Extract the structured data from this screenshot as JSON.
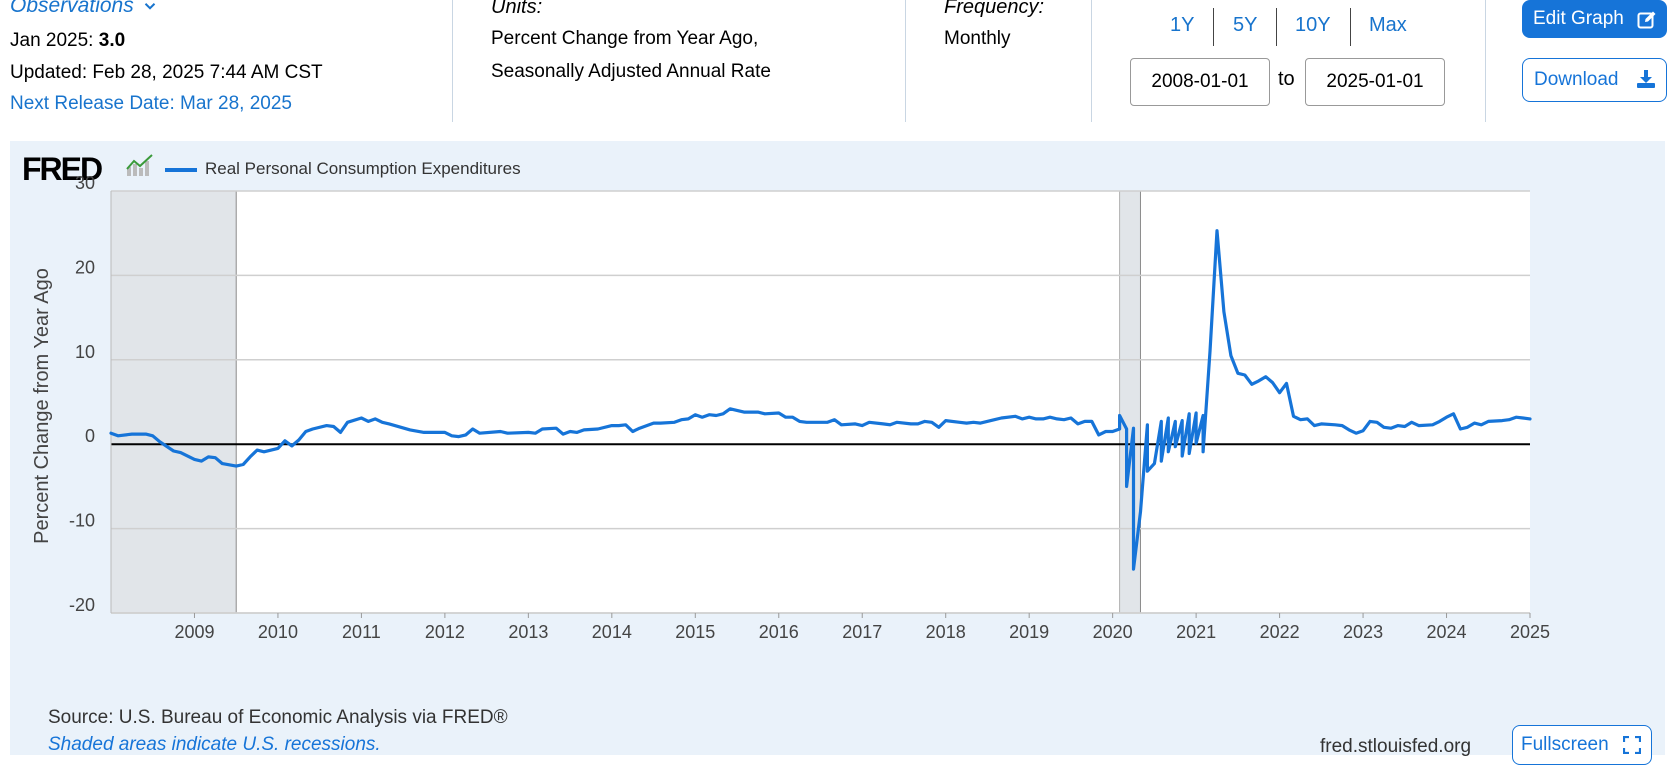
{
  "header": {
    "observations_label": "Observations",
    "latest_period": "Jan 2025:",
    "latest_value": "3.0",
    "updated": "Updated: Feb 28, 2025 7:44 AM CST",
    "next_release": "Next Release Date: Mar 28, 2025",
    "units_label": "Units:",
    "units_line1": "Percent Change from Year Ago,",
    "units_line2": "Seasonally Adjusted Annual Rate",
    "frequency_label": "Frequency:",
    "frequency_value": "Monthly"
  },
  "range_buttons": [
    "1Y",
    "5Y",
    "10Y",
    "Max"
  ],
  "date_range": {
    "start": "2008-01-01",
    "to_label": "to",
    "end": "2025-01-01"
  },
  "buttons": {
    "edit_graph": "Edit Graph",
    "download": "Download",
    "fullscreen": "Fullscreen"
  },
  "brand": {
    "logo": "FRED"
  },
  "footer": {
    "source": "Source: U.S. Bureau of Economic Analysis via FRED®",
    "shaded_note": "Shaded areas indicate U.S. recessions.",
    "site": "fred.stlouisfed.org"
  },
  "colors": {
    "accent": "#1674d8",
    "series": "#1674d8",
    "panel_bg": "#eaf2fa",
    "recession": "#e1e5e9"
  },
  "chart_data": {
    "type": "line",
    "ylabel": "Percent Change from Year Ago",
    "ylim": [
      -20,
      30
    ],
    "yticks": [
      -20,
      -10,
      0,
      10,
      20,
      30
    ],
    "xlim": [
      2008.0,
      2025.0
    ],
    "xticks": [
      "2009",
      "2010",
      "2011",
      "2012",
      "2013",
      "2014",
      "2015",
      "2016",
      "2017",
      "2018",
      "2019",
      "2020",
      "2021",
      "2022",
      "2023",
      "2024",
      "2025"
    ],
    "grid": true,
    "legend_position": "top-left",
    "recessions": [
      {
        "start": "2008-01",
        "end": "2009-06"
      },
      {
        "start": "2020-02",
        "end": "2020-04"
      }
    ],
    "series": [
      {
        "name": "Real Personal Consumption Expenditures",
        "points": [
          [
            "2008-01",
            1.3
          ],
          [
            "2008-02",
            1.0
          ],
          [
            "2008-04",
            1.2
          ],
          [
            "2008-06",
            1.2
          ],
          [
            "2008-07",
            1.0
          ],
          [
            "2008-08",
            0.3
          ],
          [
            "2008-10",
            -0.8
          ],
          [
            "2008-11",
            -1.0
          ],
          [
            "2009-01",
            -1.8
          ],
          [
            "2009-02",
            -2.0
          ],
          [
            "2009-03",
            -1.5
          ],
          [
            "2009-04",
            -1.6
          ],
          [
            "2009-05",
            -2.3
          ],
          [
            "2009-07",
            -2.6
          ],
          [
            "2009-08",
            -2.4
          ],
          [
            "2009-09",
            -1.5
          ],
          [
            "2009-10",
            -0.7
          ],
          [
            "2009-11",
            -0.9
          ],
          [
            "2010-01",
            -0.5
          ],
          [
            "2010-02",
            0.4
          ],
          [
            "2010-03",
            -0.2
          ],
          [
            "2010-04",
            0.5
          ],
          [
            "2010-05",
            1.5
          ],
          [
            "2010-06",
            1.8
          ],
          [
            "2010-08",
            2.2
          ],
          [
            "2010-09",
            2.1
          ],
          [
            "2010-10",
            1.4
          ],
          [
            "2010-11",
            2.6
          ],
          [
            "2011-01",
            3.1
          ],
          [
            "2011-02",
            2.7
          ],
          [
            "2011-03",
            3.0
          ],
          [
            "2011-04",
            2.6
          ],
          [
            "2011-05",
            2.4
          ],
          [
            "2011-08",
            1.7
          ],
          [
            "2011-10",
            1.4
          ],
          [
            "2012-01",
            1.4
          ],
          [
            "2012-02",
            1.0
          ],
          [
            "2012-03",
            0.9
          ],
          [
            "2012-04",
            1.1
          ],
          [
            "2012-05",
            1.8
          ],
          [
            "2012-06",
            1.3
          ],
          [
            "2012-09",
            1.5
          ],
          [
            "2012-10",
            1.3
          ],
          [
            "2013-01",
            1.4
          ],
          [
            "2013-02",
            1.3
          ],
          [
            "2013-03",
            1.8
          ],
          [
            "2013-05",
            1.9
          ],
          [
            "2013-06",
            1.2
          ],
          [
            "2013-07",
            1.5
          ],
          [
            "2013-08",
            1.4
          ],
          [
            "2013-09",
            1.7
          ],
          [
            "2013-11",
            1.8
          ],
          [
            "2014-01",
            2.2
          ],
          [
            "2014-02",
            2.2
          ],
          [
            "2014-03",
            2.3
          ],
          [
            "2014-04",
            1.5
          ],
          [
            "2014-05",
            1.9
          ],
          [
            "2014-07",
            2.5
          ],
          [
            "2014-08",
            2.5
          ],
          [
            "2014-10",
            2.6
          ],
          [
            "2014-11",
            2.9
          ],
          [
            "2014-12",
            3.0
          ],
          [
            "2015-01",
            3.5
          ],
          [
            "2015-02",
            3.2
          ],
          [
            "2015-03",
            3.5
          ],
          [
            "2015-04",
            3.4
          ],
          [
            "2015-05",
            3.6
          ],
          [
            "2015-06",
            4.2
          ],
          [
            "2015-07",
            4.0
          ],
          [
            "2015-08",
            3.8
          ],
          [
            "2015-10",
            3.8
          ],
          [
            "2015-11",
            3.6
          ],
          [
            "2016-01",
            3.7
          ],
          [
            "2016-02",
            3.2
          ],
          [
            "2016-03",
            3.2
          ],
          [
            "2016-04",
            2.7
          ],
          [
            "2016-05",
            2.6
          ],
          [
            "2016-07",
            2.6
          ],
          [
            "2016-08",
            2.6
          ],
          [
            "2016-09",
            2.9
          ],
          [
            "2016-10",
            2.3
          ],
          [
            "2016-12",
            2.4
          ],
          [
            "2017-01",
            2.2
          ],
          [
            "2017-02",
            2.6
          ],
          [
            "2017-04",
            2.4
          ],
          [
            "2017-05",
            2.3
          ],
          [
            "2017-06",
            2.6
          ],
          [
            "2017-08",
            2.4
          ],
          [
            "2017-09",
            2.4
          ],
          [
            "2017-10",
            2.7
          ],
          [
            "2017-11",
            2.6
          ],
          [
            "2017-12",
            2.0
          ],
          [
            "2018-01",
            2.8
          ],
          [
            "2018-03",
            2.6
          ],
          [
            "2018-04",
            2.5
          ],
          [
            "2018-05",
            2.6
          ],
          [
            "2018-06",
            2.5
          ],
          [
            "2018-08",
            2.9
          ],
          [
            "2018-09",
            3.1
          ],
          [
            "2018-11",
            3.3
          ],
          [
            "2018-12",
            3.0
          ],
          [
            "2019-01",
            3.2
          ],
          [
            "2019-02",
            3.0
          ],
          [
            "2019-03",
            3.0
          ],
          [
            "2019-04",
            3.2
          ],
          [
            "2019-05",
            3.0
          ],
          [
            "2019-06",
            2.9
          ],
          [
            "2019-07",
            3.1
          ],
          [
            "2019-08",
            2.4
          ],
          [
            "2019-09",
            2.7
          ],
          [
            "2019-10",
            2.7
          ],
          [
            "2019-11",
            1.1
          ],
          [
            "2019-12",
            1.5
          ],
          [
            "2020-01",
            1.5
          ],
          [
            "2020-02",
            1.8
          ],
          [
            "2020-03",
            1.8
          ],
          [
            "2020-04",
            1.9
          ],
          [
            "2020-06",
            2.3
          ],
          [
            "2020-08",
            2.7
          ],
          [
            "2020-09",
            3.1
          ],
          [
            "2020-10",
            2.7
          ],
          [
            "2020-11",
            2.8
          ],
          [
            "2020-12",
            3.6
          ],
          [
            "2021-01",
            3.7
          ],
          [
            "2021-02",
            3.4
          ],
          [
            "2020-02",
            3.4
          ],
          [
            "2020-03",
            -5.0
          ],
          [
            "2020-04",
            -14.8
          ],
          [
            "2020-05",
            -8.0
          ],
          [
            "2020-06",
            -3.2
          ],
          [
            "2020-07",
            -2.3
          ],
          [
            "2020-08",
            -2.0
          ],
          [
            "2020-09",
            -0.9
          ],
          [
            "2020-10",
            -0.3
          ],
          [
            "2020-11",
            -1.4
          ],
          [
            "2020-12",
            -1.1
          ],
          [
            "2021-01",
            0.1
          ],
          [
            "2021-02",
            -0.9
          ],
          [
            "2021-03",
            11.0
          ],
          [
            "2021-04",
            25.3
          ],
          [
            "2021-05",
            15.7
          ],
          [
            "2021-06",
            10.5
          ],
          [
            "2021-07",
            8.4
          ],
          [
            "2021-08",
            8.2
          ],
          [
            "2021-09",
            7.1
          ],
          [
            "2021-10",
            7.5
          ],
          [
            "2021-11",
            8.0
          ],
          [
            "2021-12",
            7.3
          ],
          [
            "2022-01",
            6.1
          ],
          [
            "2022-02",
            7.2
          ],
          [
            "2022-03",
            3.3
          ],
          [
            "2022-04",
            2.9
          ],
          [
            "2022-05",
            3.0
          ],
          [
            "2022-06",
            2.2
          ],
          [
            "2022-07",
            2.4
          ],
          [
            "2022-09",
            2.3
          ],
          [
            "2022-10",
            2.2
          ],
          [
            "2022-11",
            1.7
          ],
          [
            "2022-12",
            1.3
          ],
          [
            "2023-01",
            1.6
          ],
          [
            "2023-02",
            2.7
          ],
          [
            "2023-03",
            2.6
          ],
          [
            "2023-04",
            2.0
          ],
          [
            "2023-05",
            1.9
          ],
          [
            "2023-06",
            2.2
          ],
          [
            "2023-07",
            2.1
          ],
          [
            "2023-08",
            2.6
          ],
          [
            "2023-09",
            2.2
          ],
          [
            "2023-11",
            2.3
          ],
          [
            "2023-12",
            2.7
          ],
          [
            "2024-01",
            3.2
          ],
          [
            "2024-02",
            3.6
          ],
          [
            "2024-03",
            1.8
          ],
          [
            "2024-04",
            2.0
          ],
          [
            "2024-05",
            2.5
          ],
          [
            "2024-06",
            2.3
          ],
          [
            "2024-07",
            2.7
          ],
          [
            "2024-09",
            2.8
          ],
          [
            "2024-10",
            2.9
          ],
          [
            "2024-11",
            3.2
          ],
          [
            "2024-12",
            3.1
          ],
          [
            "2025-01",
            3.0
          ]
        ]
      }
    ]
  }
}
